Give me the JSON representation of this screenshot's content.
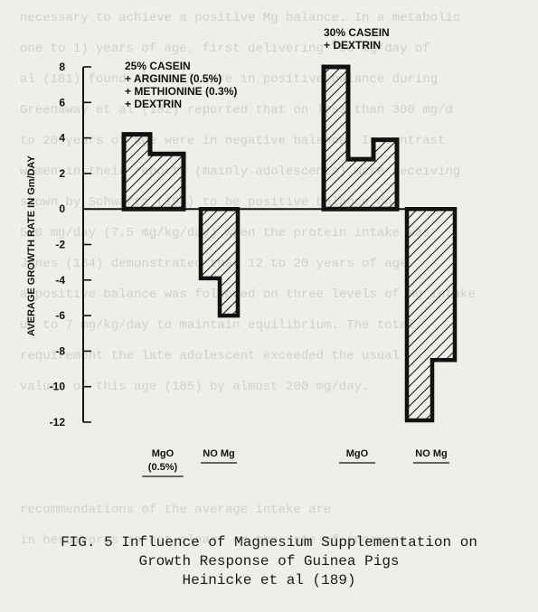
{
  "background_text": [
    "necessary to achieve a positive Mg balance.  In a metabolic",
    "one to 1) years of age, first delivering 750 mg/day of",
    "al (181) found that all were in positive balance during",
    "Greenaway et al (182) reported that on less than 300 mg/d",
    "to 20 years of age were in negative balance.  In contrast",
    "women in their reports (mainly adolescents) were receiving",
    "shown by Schwartz (183) to be positive balance on",
    "500 mg/day (7.5 mg/kg/day) when the protein intake was",
    "Jones (184) demonstrated that 12 to 20 years of age",
    "a positive balance was followed on three levels of Mg intake",
    "up to 7 mg/kg/day to maintain equilibrium.  The total",
    "requirement the late adolescent exceeded the usual",
    "values of this age (185) by almost 200 mg/day.",
    "",
    "",
    "",
    "recommendations of the average intake are",
    "in herbivores is not clear, or the rate of increase"
  ],
  "chart_data": {
    "type": "bar",
    "ylabel": "AVERAGE GROWTH RATE IN Gm/DAY",
    "ylim": [
      -12,
      8
    ],
    "yticks": [
      8,
      6,
      4,
      2,
      0,
      -2,
      -4,
      -6,
      -8,
      -10,
      -12
    ],
    "grid": false,
    "legend": "none",
    "groups": [
      {
        "label_lines": [
          "25% CASEIN",
          "+ ARGININE (0.5%)",
          "+ METHIONINE (0.3%)",
          "+ DEXTRIN"
        ],
        "bars": [
          {
            "category": "MgO (0.5%)",
            "category_lines": [
              "MgO",
              "(0.5%)"
            ],
            "steps": [
              4.2,
              3.1
            ]
          },
          {
            "category": "NO Mg",
            "category_lines": [
              "NO Mg"
            ],
            "steps": [
              -3.9,
              -6.0
            ]
          }
        ]
      },
      {
        "label_lines": [
          "30% CASEIN",
          "+ DEXTRIN"
        ],
        "bars": [
          {
            "category": "MgO",
            "category_lines": [
              "MgO"
            ],
            "steps": [
              8.0,
              2.8,
              3.9
            ]
          },
          {
            "category": "NO Mg",
            "category_lines": [
              "NO Mg"
            ],
            "steps": [
              -11.9,
              -8.5
            ]
          }
        ]
      }
    ]
  },
  "caption": [
    "FIG. 5 Influence of Magnesium Supplementation on",
    "Growth Response of Guinea Pigs",
    "Heinicke et al (189)"
  ],
  "colors": {
    "ink": "#111111",
    "paper": "#efeee9",
    "ghost_text": "#b9b8b2"
  }
}
